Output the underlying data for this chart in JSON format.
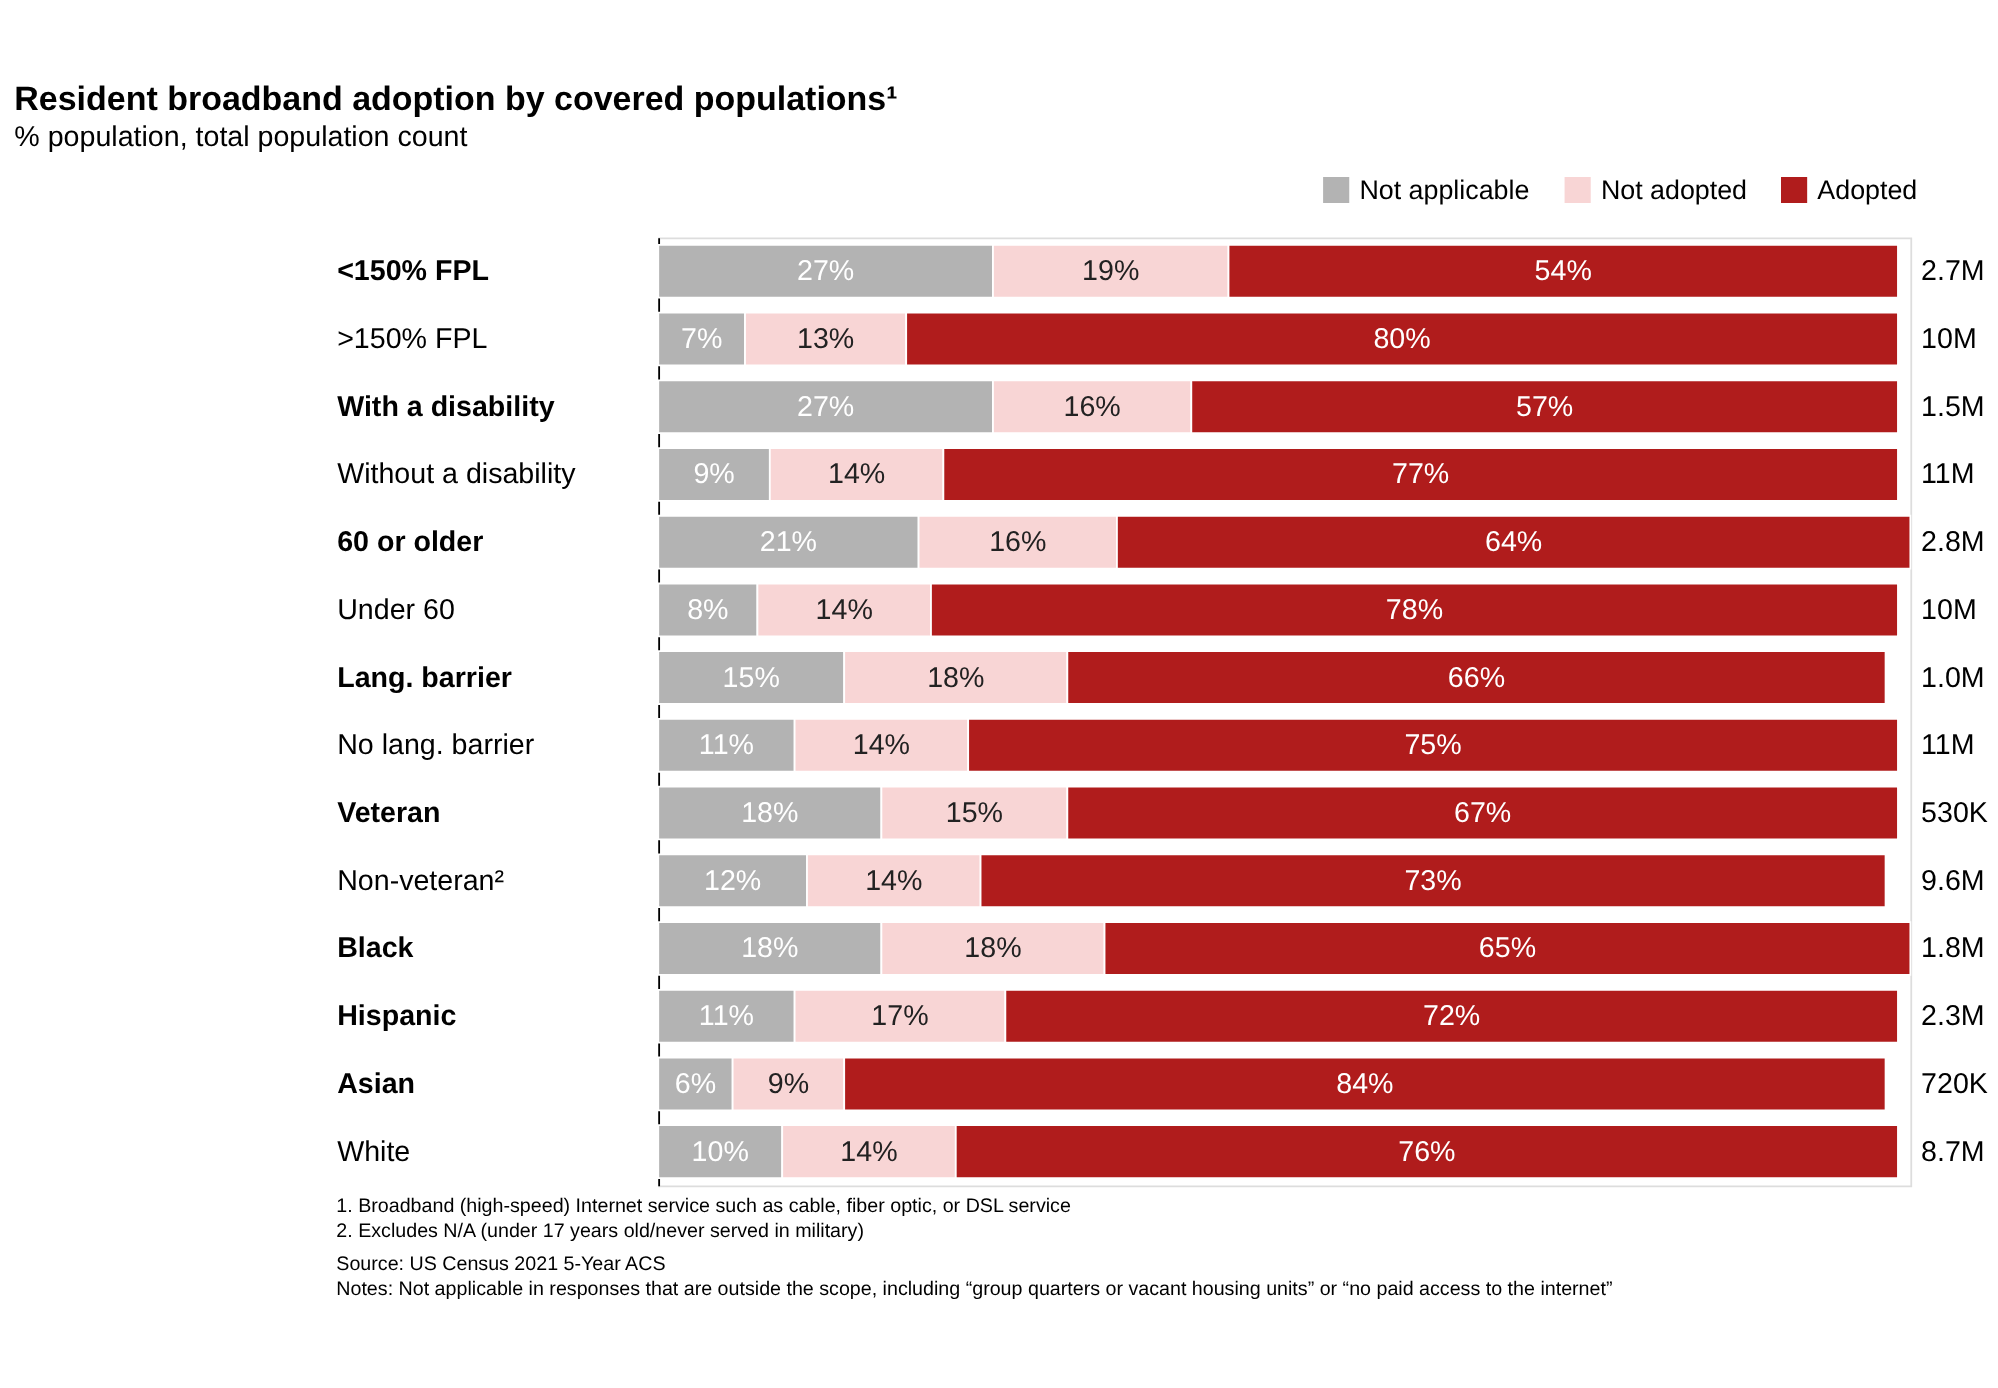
{
  "chart_data": {
    "type": "bar",
    "orientation": "horizontal",
    "stacked": true,
    "title": "Resident broadband adoption by covered populations¹",
    "subtitle": "% population, total population count",
    "categories": [
      "<150% FPL",
      ">150% FPL",
      "With a disability",
      "Without a disability",
      "60 or older",
      "Under 60",
      "Lang. barrier",
      "No lang. barrier",
      "Veteran",
      "Non-veteran²",
      "Black",
      "Hispanic",
      "Asian",
      "White"
    ],
    "series": [
      {
        "name": "Not applicable",
        "color": "#b3b3b3",
        "values": [
          27,
          7,
          27,
          9,
          21,
          8,
          15,
          11,
          18,
          12,
          18,
          11,
          6,
          10
        ],
        "value_labels": [
          "27%",
          "7%",
          "27%",
          "9%",
          "21%",
          "8%",
          "15%",
          "11%",
          "18%",
          "12%",
          "18%",
          "11%",
          "6%",
          "10%"
        ]
      },
      {
        "name": "Not adopted",
        "color": "#f8d5d5",
        "values": [
          19,
          13,
          16,
          14,
          16,
          14,
          18,
          14,
          15,
          14,
          18,
          17,
          9,
          14
        ],
        "value_labels": [
          "19%",
          "13%",
          "16%",
          "14%",
          "16%",
          "14%",
          "18%",
          "14%",
          "15%",
          "14%",
          "18%",
          "17%",
          "9%",
          "14%"
        ]
      },
      {
        "name": "Adopted",
        "color": "#b01c1c",
        "values": [
          54,
          80,
          57,
          77,
          64,
          78,
          66,
          75,
          67,
          73,
          65,
          72,
          84,
          76
        ],
        "value_labels": [
          "54%",
          "80%",
          "57%",
          "77%",
          "64%",
          "78%",
          "66%",
          "75%",
          "67%",
          "73%",
          "65%",
          "72%",
          "84%",
          "76%"
        ]
      }
    ],
    "xlim": [
      0,
      101
    ],
    "tick_labels": "y",
    "legend": "top right",
    "grid": false,
    "y2_categories": [
      "2.7M",
      "10M",
      "1.5M",
      "11M",
      "2.8M",
      "10M",
      "1.0M",
      "11M",
      "530K",
      "9.6M",
      "1.8M",
      "2.3M",
      "720K",
      "8.7M"
    ],
    "annotations": [
      "1.   Broadband (high-speed) Internet service such as cable, fiber optic, or DSL service",
      "2.   Excludes N/A (under 17 years old/never served in military)",
      "Source: US Census 2021 5-Year ACS",
      "Notes: Not applicable in responses that are outside the scope, including “group quarters or vacant housing units” or “no paid access to the internet”"
    ]
  }
}
